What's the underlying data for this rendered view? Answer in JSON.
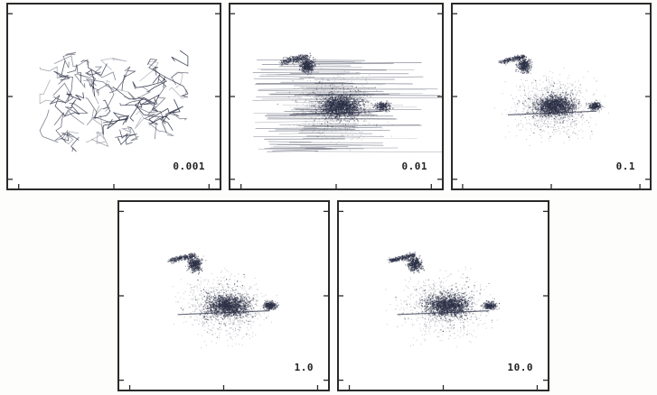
{
  "panels": [
    {
      "label": "0.001",
      "style": "scribble"
    },
    {
      "label": "0.01",
      "style": "streaky"
    },
    {
      "label": "0.1",
      "style": "bird"
    },
    {
      "label": "1.0",
      "style": "bird"
    },
    {
      "label": "10.0",
      "style": "bird"
    }
  ],
  "ink_color": "#2b2f45"
}
